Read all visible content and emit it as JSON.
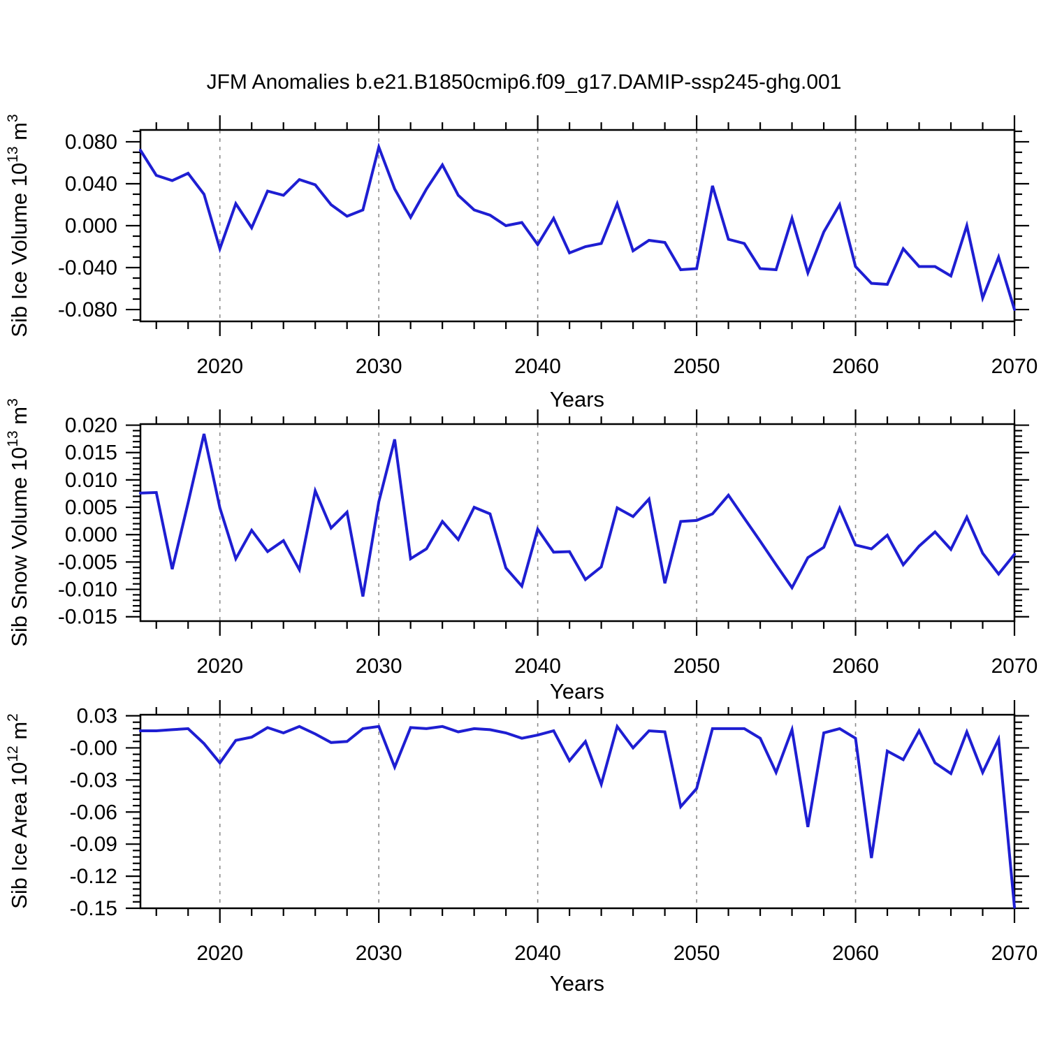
{
  "page": {
    "title": "JFM Anomalies b.e21.B1850cmip6.f09_g17.DAMIP-ssp245-ghg.001",
    "background": "#ffffff"
  },
  "line_color": "#1e1ed2",
  "axis_color": "#000000",
  "gridline_color": "#8c8c8c",
  "xaxis": {
    "label": "Years",
    "min": 2015,
    "max": 2070,
    "major_ticks": [
      2020,
      2030,
      2040,
      2050,
      2060,
      2070
    ],
    "minor_step_years": 2,
    "decade_gridlines": [
      2020,
      2030,
      2040,
      2050,
      2060
    ]
  },
  "years": [
    2015,
    2016,
    2017,
    2018,
    2019,
    2020,
    2021,
    2022,
    2023,
    2024,
    2025,
    2026,
    2027,
    2028,
    2029,
    2030,
    2031,
    2032,
    2033,
    2034,
    2035,
    2036,
    2037,
    2038,
    2039,
    2040,
    2041,
    2042,
    2043,
    2044,
    2045,
    2046,
    2047,
    2048,
    2049,
    2050,
    2051,
    2052,
    2053,
    2054,
    2055,
    2056,
    2057,
    2058,
    2059,
    2060,
    2061,
    2062,
    2063,
    2064,
    2065,
    2066,
    2067,
    2068,
    2069,
    2070
  ],
  "chart_data": [
    {
      "type": "line",
      "series_name": "Sib Ice Volume anomaly",
      "ylabel": {
        "pre": "Sib Ice Volume 10",
        "sup1": "13",
        "mid": " m",
        "sup2": "3"
      },
      "ylim": [
        -0.0913,
        0.0913
      ],
      "ytick_values": [
        0.08,
        0.04,
        0.0,
        -0.04,
        -0.08
      ],
      "ytick_labels": [
        "0.080",
        "0.040",
        "0.000",
        "-0.040",
        "-0.080"
      ],
      "yminor_step": 0.01,
      "grid": "vertical-dashed-decades",
      "legend": "none",
      "values": [
        0.072,
        0.048,
        0.043,
        0.05,
        0.03,
        -0.022,
        0.021,
        -0.002,
        0.033,
        0.029,
        0.044,
        0.039,
        0.02,
        0.009,
        0.015,
        0.075,
        0.035,
        0.008,
        0.035,
        0.058,
        0.029,
        0.015,
        0.01,
        0.0,
        0.003,
        -0.018,
        0.007,
        -0.026,
        -0.02,
        -0.017,
        0.021,
        -0.024,
        -0.014,
        -0.016,
        -0.042,
        -0.041,
        0.038,
        -0.013,
        -0.017,
        -0.041,
        -0.042,
        0.007,
        -0.045,
        -0.006,
        0.02,
        -0.039,
        -0.055,
        -0.056,
        -0.022,
        -0.039,
        -0.039,
        -0.048,
        0.0,
        -0.069,
        -0.03,
        -0.08
      ]
    },
    {
      "type": "line",
      "series_name": "Sib Snow Volume anomaly",
      "ylabel": {
        "pre": "Sib Snow Volume 10",
        "sup1": "13",
        "mid": " m",
        "sup2": "3"
      },
      "ylim": [
        -0.0158,
        0.0202
      ],
      "ytick_values": [
        0.02,
        0.015,
        0.01,
        0.005,
        0.0,
        -0.005,
        -0.01,
        -0.015
      ],
      "ytick_labels": [
        "0.020",
        "0.015",
        "0.010",
        "0.005",
        "0.000",
        "-0.005",
        "-0.010",
        "-0.015"
      ],
      "yminor_step": 0.001,
      "grid": "vertical-dashed-decades",
      "legend": "none",
      "values": [
        0.0076,
        0.0077,
        -0.0063,
        0.0058,
        0.0184,
        0.0049,
        -0.0044,
        0.0008,
        -0.0031,
        -0.0011,
        -0.0064,
        0.008,
        0.0012,
        0.0041,
        -0.0113,
        0.006,
        0.0174,
        -0.0044,
        -0.0026,
        0.0024,
        -0.0009,
        0.005,
        0.0038,
        -0.0061,
        -0.0094,
        0.001,
        -0.0032,
        -0.0031,
        -0.0082,
        -0.0059,
        0.0049,
        0.0033,
        0.0065,
        -0.0089,
        0.0024,
        0.0026,
        0.0038,
        0.0072,
        0.003,
        -0.0012,
        -0.0055,
        -0.0097,
        -0.0042,
        -0.0023,
        0.0048,
        -0.0019,
        -0.0026,
        -0.0001,
        -0.0055,
        -0.0021,
        0.0005,
        -0.0027,
        0.0032,
        -0.0034,
        -0.0072,
        -0.0036
      ]
    },
    {
      "type": "line",
      "series_name": "Sib Ice Area anomaly",
      "ylabel": {
        "pre": "Sib Ice Area 10",
        "sup1": "12",
        "mid": " m",
        "sup2": "2"
      },
      "ylim": [
        -0.15,
        0.031
      ],
      "ytick_values": [
        0.03,
        0.0,
        -0.03,
        -0.06,
        -0.09,
        -0.12,
        -0.15
      ],
      "ytick_labels": [
        "0.03",
        "-0.00",
        "-0.03",
        "-0.06",
        "-0.09",
        "-0.12",
        "-0.15"
      ],
      "yminor_step": 0.006,
      "grid": "vertical-dashed-decades",
      "legend": "none",
      "values": [
        0.016,
        0.016,
        0.017,
        0.018,
        0.004,
        -0.014,
        0.007,
        0.01,
        0.019,
        0.014,
        0.02,
        0.013,
        0.005,
        0.006,
        0.018,
        0.02,
        -0.018,
        0.019,
        0.018,
        0.02,
        0.015,
        0.018,
        0.017,
        0.014,
        0.009,
        0.012,
        0.016,
        -0.012,
        0.006,
        -0.034,
        0.02,
        0.0,
        0.016,
        0.015,
        -0.055,
        -0.038,
        0.018,
        0.018,
        0.018,
        0.009,
        -0.023,
        0.017,
        -0.074,
        0.014,
        0.018,
        0.009,
        -0.103,
        -0.003,
        -0.011,
        0.016,
        -0.014,
        -0.024,
        0.015,
        -0.023,
        0.008,
        -0.149
      ]
    }
  ]
}
